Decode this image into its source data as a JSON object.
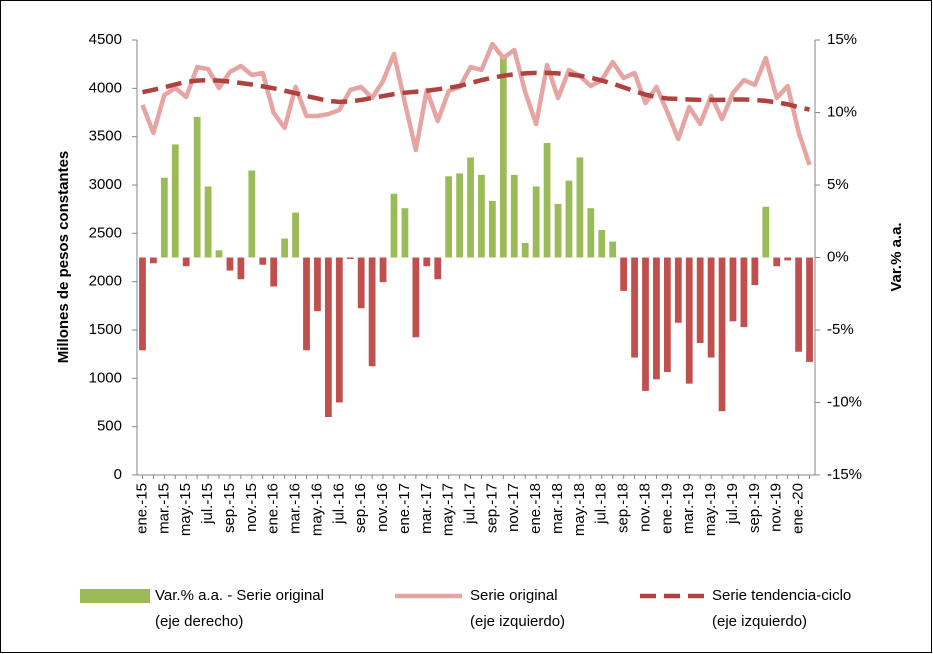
{
  "chart_data": {
    "type": "bar-line",
    "y_label": "Millones de pesos constantes",
    "y2_label": "Var.% a.a.",
    "categories": [
      "ene.-15",
      null,
      "mar.-15",
      null,
      "may.-15",
      null,
      "jul.-15",
      null,
      "sep.-15",
      null,
      "nov.-15",
      null,
      "ene.-16",
      null,
      "mar.-16",
      null,
      "may.-16",
      null,
      "jul.-16",
      null,
      "sep.-16",
      null,
      "nov.-16",
      null,
      "ene.-17",
      null,
      "mar.-17",
      null,
      "may.-17",
      null,
      "jul.-17",
      null,
      "sep.-17",
      null,
      "nov.-17",
      null,
      "ene.-18",
      null,
      "mar.-18",
      null,
      "may.-18",
      null,
      "jul.-18",
      null,
      "sep.-18",
      null,
      "nov.-18",
      null,
      "ene.-19",
      null,
      "mar.-19",
      null,
      "may.-19",
      null,
      "jul.-19",
      null,
      "sep.-19",
      null,
      "nov.-19",
      null,
      "ene.-20",
      null
    ],
    "series": [
      {
        "name": "Var.% a.a. - Serie original\n(eje derecho)",
        "type": "bar",
        "axis": "y2",
        "color": "#9bbb59",
        "negative_color": "#c0504d",
        "values": [
          -6.4,
          -0.4,
          5.5,
          7.8,
          -0.6,
          9.7,
          4.9,
          0.5,
          -0.9,
          -1.5,
          6.0,
          -0.5,
          -2.0,
          1.3,
          3.1,
          -6.4,
          -3.7,
          -11.0,
          -10.0,
          -0.1,
          -3.5,
          -7.5,
          -1.7,
          4.4,
          3.4,
          -5.5,
          -0.6,
          -1.5,
          5.6,
          5.8,
          6.9,
          5.7,
          3.9,
          14.0,
          5.7,
          1.0,
          4.9,
          7.9,
          3.7,
          5.3,
          6.9,
          3.4,
          1.9,
          1.1,
          -2.3,
          -6.9,
          -9.2,
          -8.4,
          -7.9,
          -4.5,
          -8.7,
          -5.9,
          -6.9,
          -10.6,
          -4.4,
          -4.8,
          -1.9,
          3.5,
          -0.6,
          -0.2,
          -6.5,
          -7.2
        ]
      },
      {
        "name": "Serie original\n(eje izquierdo)",
        "type": "line",
        "axis": "y",
        "color": "#e6a5a3",
        "dashed": false,
        "values": [
          3828,
          3538,
          3931,
          4003,
          3910,
          4220,
          4200,
          4003,
          4169,
          4231,
          4138,
          4159,
          3745,
          3590,
          4014,
          3714,
          3714,
          3734,
          3776,
          3983,
          4014,
          3900,
          4076,
          4355,
          3848,
          3362,
          3983,
          3662,
          3972,
          4014,
          4220,
          4190,
          4459,
          4314,
          4397,
          3962,
          3631,
          4241,
          3900,
          4190,
          4128,
          4024,
          4086,
          4272,
          4107,
          4159,
          3848,
          4014,
          3755,
          3476,
          3807,
          3631,
          3921,
          3683,
          3952,
          4086,
          4035,
          4314,
          3900,
          4024,
          3548,
          3207
        ]
      },
      {
        "name": "Serie tendencia-ciclo\n(eje izquierdo)",
        "type": "line",
        "axis": "y",
        "color": "#b0413e",
        "dashed": true,
        "values": [
          3960,
          3985,
          4010,
          4040,
          4065,
          4080,
          4085,
          4080,
          4070,
          4055,
          4040,
          4020,
          4000,
          3975,
          3950,
          3920,
          3895,
          3870,
          3860,
          3865,
          3880,
          3900,
          3920,
          3940,
          3955,
          3965,
          3975,
          3990,
          4005,
          4025,
          4055,
          4085,
          4110,
          4130,
          4145,
          4155,
          4160,
          4160,
          4155,
          4145,
          4130,
          4110,
          4080,
          4050,
          4010,
          3970,
          3935,
          3910,
          3895,
          3890,
          3885,
          3880,
          3880,
          3880,
          3885,
          3885,
          3880,
          3870,
          3855,
          3835,
          3805,
          3780
        ]
      }
    ],
    "ylim": [
      0,
      4500
    ],
    "yticks": [
      0,
      500,
      1000,
      1500,
      2000,
      2500,
      3000,
      3500,
      4000,
      4500
    ],
    "y2lim": [
      -15,
      15
    ],
    "y2ticks": [
      {
        "value": -15,
        "label": "-15%"
      },
      {
        "value": -10,
        "label": "-10%"
      },
      {
        "value": -5,
        "label": "-5%"
      },
      {
        "value": 0,
        "label": "0%"
      },
      {
        "value": 5,
        "label": "5%"
      },
      {
        "value": 10,
        "label": "10%"
      },
      {
        "value": 15,
        "label": "15%"
      }
    ],
    "grid": false
  }
}
